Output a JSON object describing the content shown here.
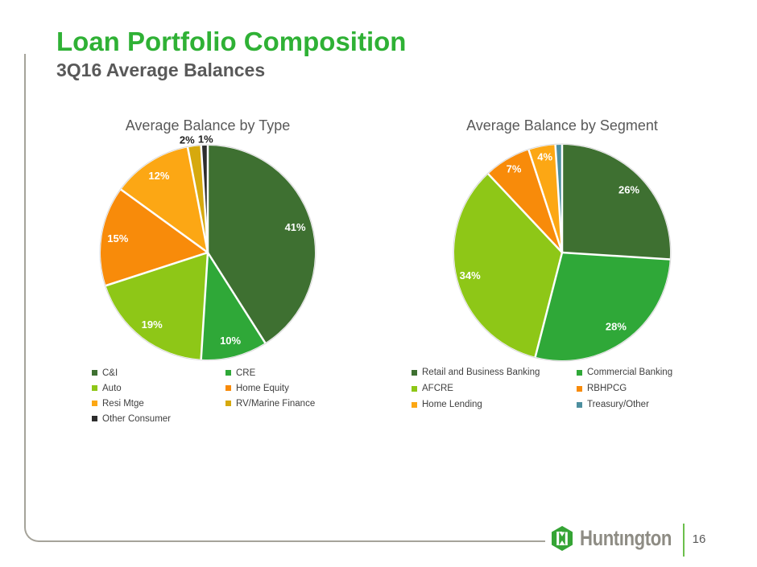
{
  "slide": {
    "title": "Loan Portfolio Composition",
    "subtitle": "3Q16 Average Balances",
    "page_number": "16",
    "logo_text": "Huntıngton"
  },
  "colors": {
    "title_green": "#2fb135",
    "subtitle_gray": "#595959",
    "border_gray": "#a5a39a",
    "logo_green": "#35a435",
    "footer_separator_green": "#6cbf4c",
    "inside_label": "#ffffff",
    "outside_label": "#1f1f1f"
  },
  "chart_data": [
    {
      "type": "pie",
      "title": "Average Balance by Type",
      "start_angle_deg": 0,
      "direction": "clockwise",
      "units": "%",
      "legend_position": "bottom",
      "slices": [
        {
          "label": "C&I",
          "value": 41,
          "pct_label": "41%",
          "color": "#3e7031",
          "label_placement": "inside"
        },
        {
          "label": "CRE",
          "value": 10,
          "pct_label": "10%",
          "color": "#2fa838",
          "label_placement": "inside"
        },
        {
          "label": "Auto",
          "value": 19,
          "pct_label": "19%",
          "color": "#8ec717",
          "label_placement": "inside"
        },
        {
          "label": "Home Equity",
          "value": 15,
          "pct_label": "15%",
          "color": "#f88b0a",
          "label_placement": "inside"
        },
        {
          "label": "Resi Mtge",
          "value": 12,
          "pct_label": "12%",
          "color": "#fca714",
          "label_placement": "inside"
        },
        {
          "label": "RV/Marine Finance",
          "value": 2,
          "pct_label": "2%",
          "color": "#d6a90e",
          "label_placement": "outside"
        },
        {
          "label": "Other Consumer",
          "value": 1,
          "pct_label": "1%",
          "color": "#2d2d2d",
          "label_placement": "outside"
        }
      ]
    },
    {
      "type": "pie",
      "title": "Average Balance by Segment",
      "start_angle_deg": 0,
      "direction": "clockwise",
      "units": "%",
      "legend_position": "bottom",
      "slices": [
        {
          "label": "Retail and Business Banking",
          "value": 26,
          "pct_label": "26%",
          "color": "#3e7031",
          "label_placement": "inside"
        },
        {
          "label": "Commercial Banking",
          "value": 28,
          "pct_label": "28%",
          "color": "#2fa838",
          "label_placement": "inside"
        },
        {
          "label": "AFCRE",
          "value": 34,
          "pct_label": "34%",
          "color": "#8ec717",
          "label_placement": "inside"
        },
        {
          "label": "RBHPCG",
          "value": 7,
          "pct_label": "7%",
          "color": "#f88b0a",
          "label_placement": "inside"
        },
        {
          "label": "Home Lending",
          "value": 4,
          "pct_label": "4%",
          "color": "#fca714",
          "label_placement": "inside"
        },
        {
          "label": "Treasury/Other",
          "value": 1,
          "pct_label": "",
          "color": "#4d8f9f",
          "label_placement": "none"
        }
      ]
    }
  ]
}
